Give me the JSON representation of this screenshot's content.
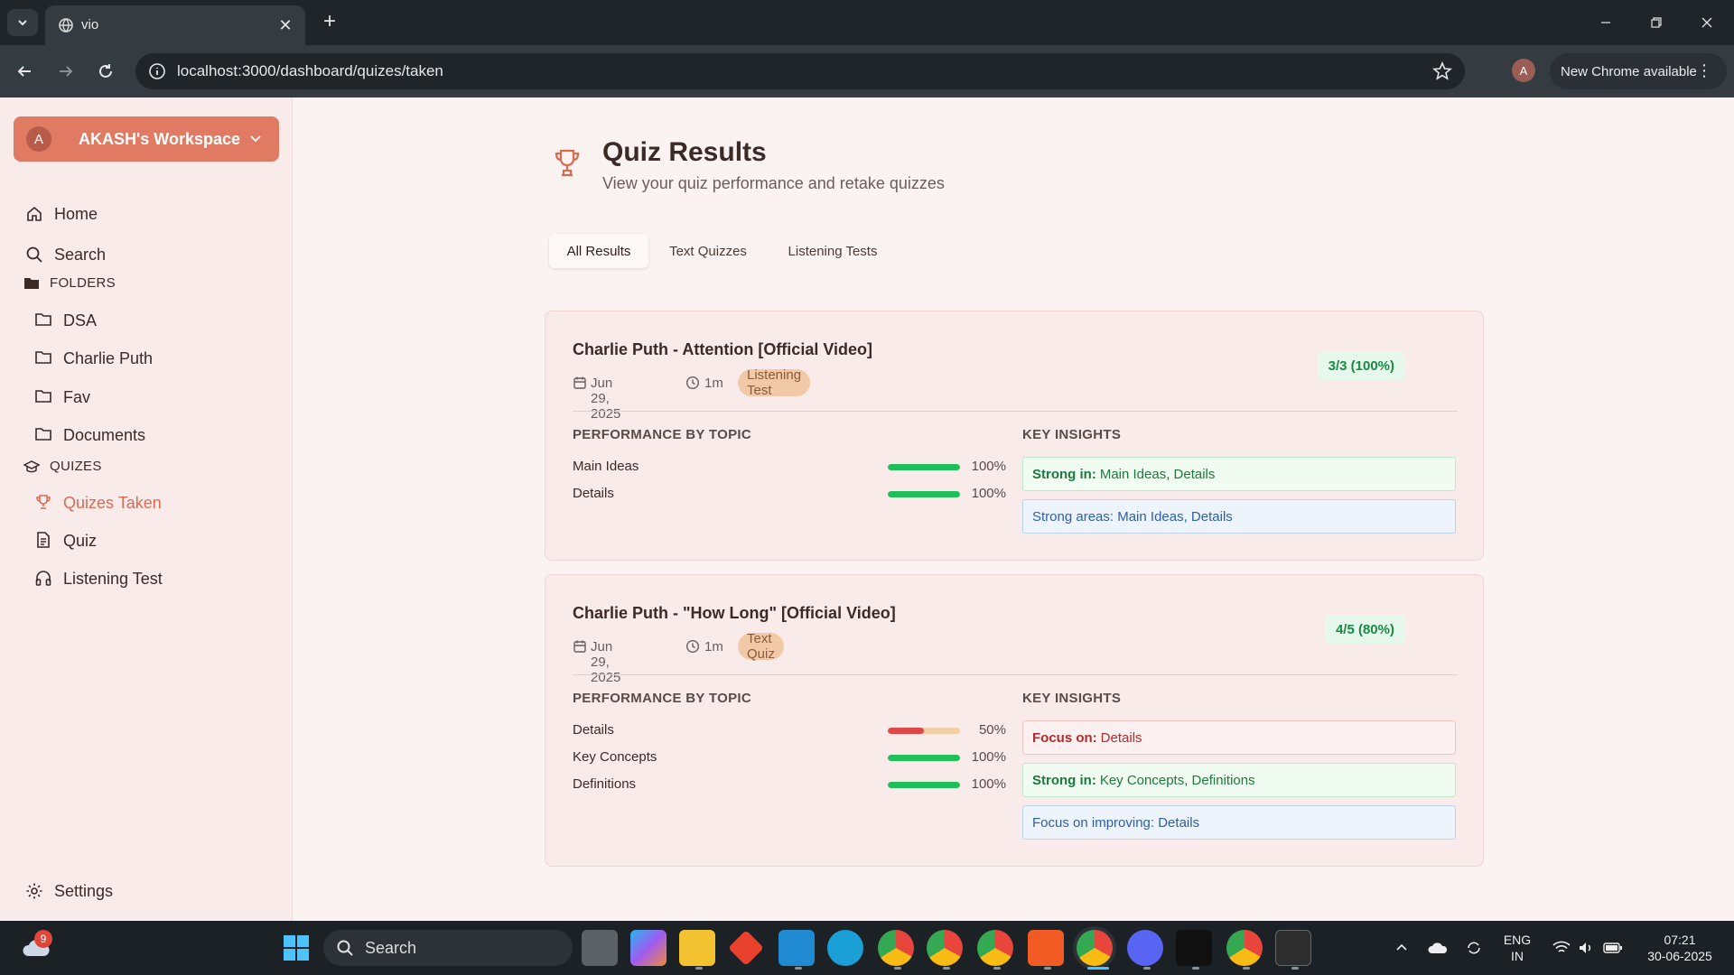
{
  "browser": {
    "tab_title": "vio",
    "url": "localhost:3000/dashboard/quizes/taken",
    "profile_initial": "A",
    "update_label": "New Chrome available"
  },
  "sidebar": {
    "workspace_initial": "A",
    "workspace_name": "AKASH's Workspace",
    "home": "Home",
    "search": "Search",
    "folders_heading": "FOLDERS",
    "folders": [
      "DSA",
      "Charlie Puth",
      "Fav",
      "Documents"
    ],
    "quizes_heading": "QUIZES",
    "quiz_items": [
      "Quizes Taken",
      "Quiz",
      "Listening Test"
    ],
    "settings": "Settings"
  },
  "main": {
    "title": "Quiz Results",
    "subtitle": "View your quiz performance and retake quizzes",
    "tabs": [
      "All Results",
      "Text Quizzes",
      "Listening Tests"
    ],
    "performance_heading": "PERFORMANCE BY TOPIC",
    "insights_heading": "KEY INSIGHTS",
    "results": [
      {
        "title": "Charlie Puth - Attention [Official Video]",
        "date": "Jun 29, 2025",
        "duration": "1m",
        "type": "Listening Test",
        "score": "3/3 (100%)",
        "topics": [
          {
            "name": "Main Ideas",
            "percent": 100,
            "label": "100%"
          },
          {
            "name": "Details",
            "percent": 100,
            "label": "100%"
          }
        ],
        "insights": [
          {
            "kind": "green",
            "label": "Strong in:",
            "text": "Main Ideas, Details"
          },
          {
            "kind": "blue",
            "label": "",
            "text": "Strong areas: Main Ideas, Details"
          }
        ]
      },
      {
        "title": "Charlie Puth - \"How Long\" [Official Video]",
        "date": "Jun 29, 2025",
        "duration": "1m",
        "type": "Text Quiz",
        "score": "4/5 (80%)",
        "topics": [
          {
            "name": "Details",
            "percent": 50,
            "label": "50%"
          },
          {
            "name": "Key Concepts",
            "percent": 100,
            "label": "100%"
          },
          {
            "name": "Definitions",
            "percent": 100,
            "label": "100%"
          }
        ],
        "insights": [
          {
            "kind": "red",
            "label": "Focus on:",
            "text": "Details"
          },
          {
            "kind": "green",
            "label": "Strong in:",
            "text": "Key Concepts, Definitions"
          },
          {
            "kind": "blue",
            "label": "",
            "text": "Focus on improving: Details"
          }
        ]
      }
    ]
  },
  "taskbar": {
    "search_label": "Search",
    "notification_count": "9",
    "lang_top": "ENG",
    "lang_bottom": "IN",
    "time": "07:21",
    "date": "30-06-2025"
  },
  "colors": {
    "accent": "#e07a62",
    "bar_good": "#1fbf5c",
    "bar_bad": "#e04848"
  }
}
